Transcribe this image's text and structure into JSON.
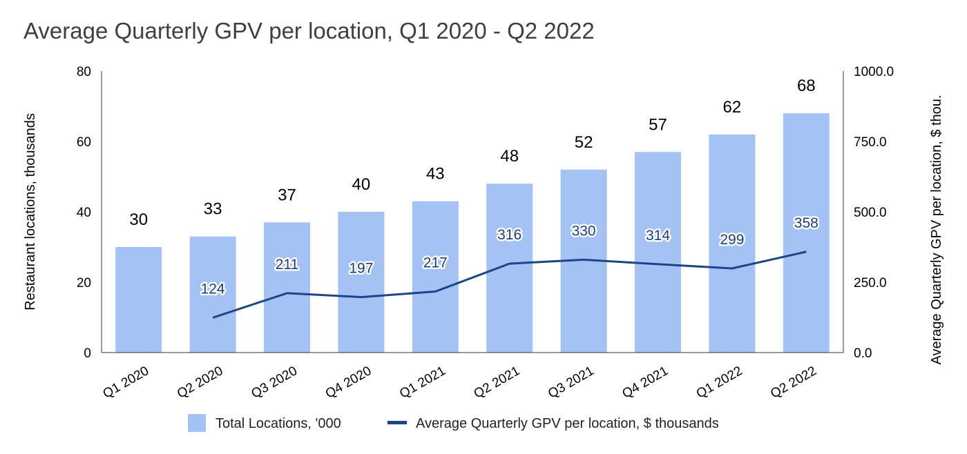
{
  "chart_data": {
    "type": "bar",
    "title": "Average Quarterly GPV per location, Q1 2020 - Q2 2022",
    "categories": [
      "Q1 2020",
      "Q2 2020",
      "Q3 2020",
      "Q4 2020",
      "Q1 2021",
      "Q2 2021",
      "Q3 2021",
      "Q4 2021",
      "Q1 2022",
      "Q2 2022"
    ],
    "series": [
      {
        "name": "Total Locations, '000",
        "type": "bar",
        "axis": "left",
        "color": "#a4c2f4",
        "values": [
          30,
          33,
          37,
          40,
          43,
          48,
          52,
          57,
          62,
          68
        ],
        "labels": [
          "30",
          "33",
          "37",
          "40",
          "43",
          "48",
          "52",
          "57",
          "62",
          "68"
        ]
      },
      {
        "name": "Average Quarterly GPV per location, $ thousands",
        "type": "line",
        "axis": "right",
        "color": "#1c4587",
        "values": [
          null,
          124,
          211,
          197,
          217,
          316,
          330,
          314,
          299,
          358
        ],
        "labels": [
          "",
          "124",
          "211",
          "197",
          "217",
          "316",
          "330",
          "314",
          "299",
          "358"
        ]
      }
    ],
    "y_left": {
      "label": "Restaurant locations, thousands",
      "range": [
        0,
        80
      ],
      "ticks": [
        0,
        20,
        40,
        60,
        80
      ],
      "tick_labels": [
        "0",
        "20",
        "40",
        "60",
        "80"
      ]
    },
    "y_right": {
      "label": "Average Quarterly GPV per location, $ thou.",
      "range": [
        0,
        1000
      ],
      "ticks": [
        0,
        250,
        500,
        750,
        1000
      ],
      "tick_labels": [
        "0.0",
        "250.0",
        "500.0",
        "750.0",
        "1000.0"
      ]
    },
    "grid": false,
    "legend": "bottom"
  }
}
